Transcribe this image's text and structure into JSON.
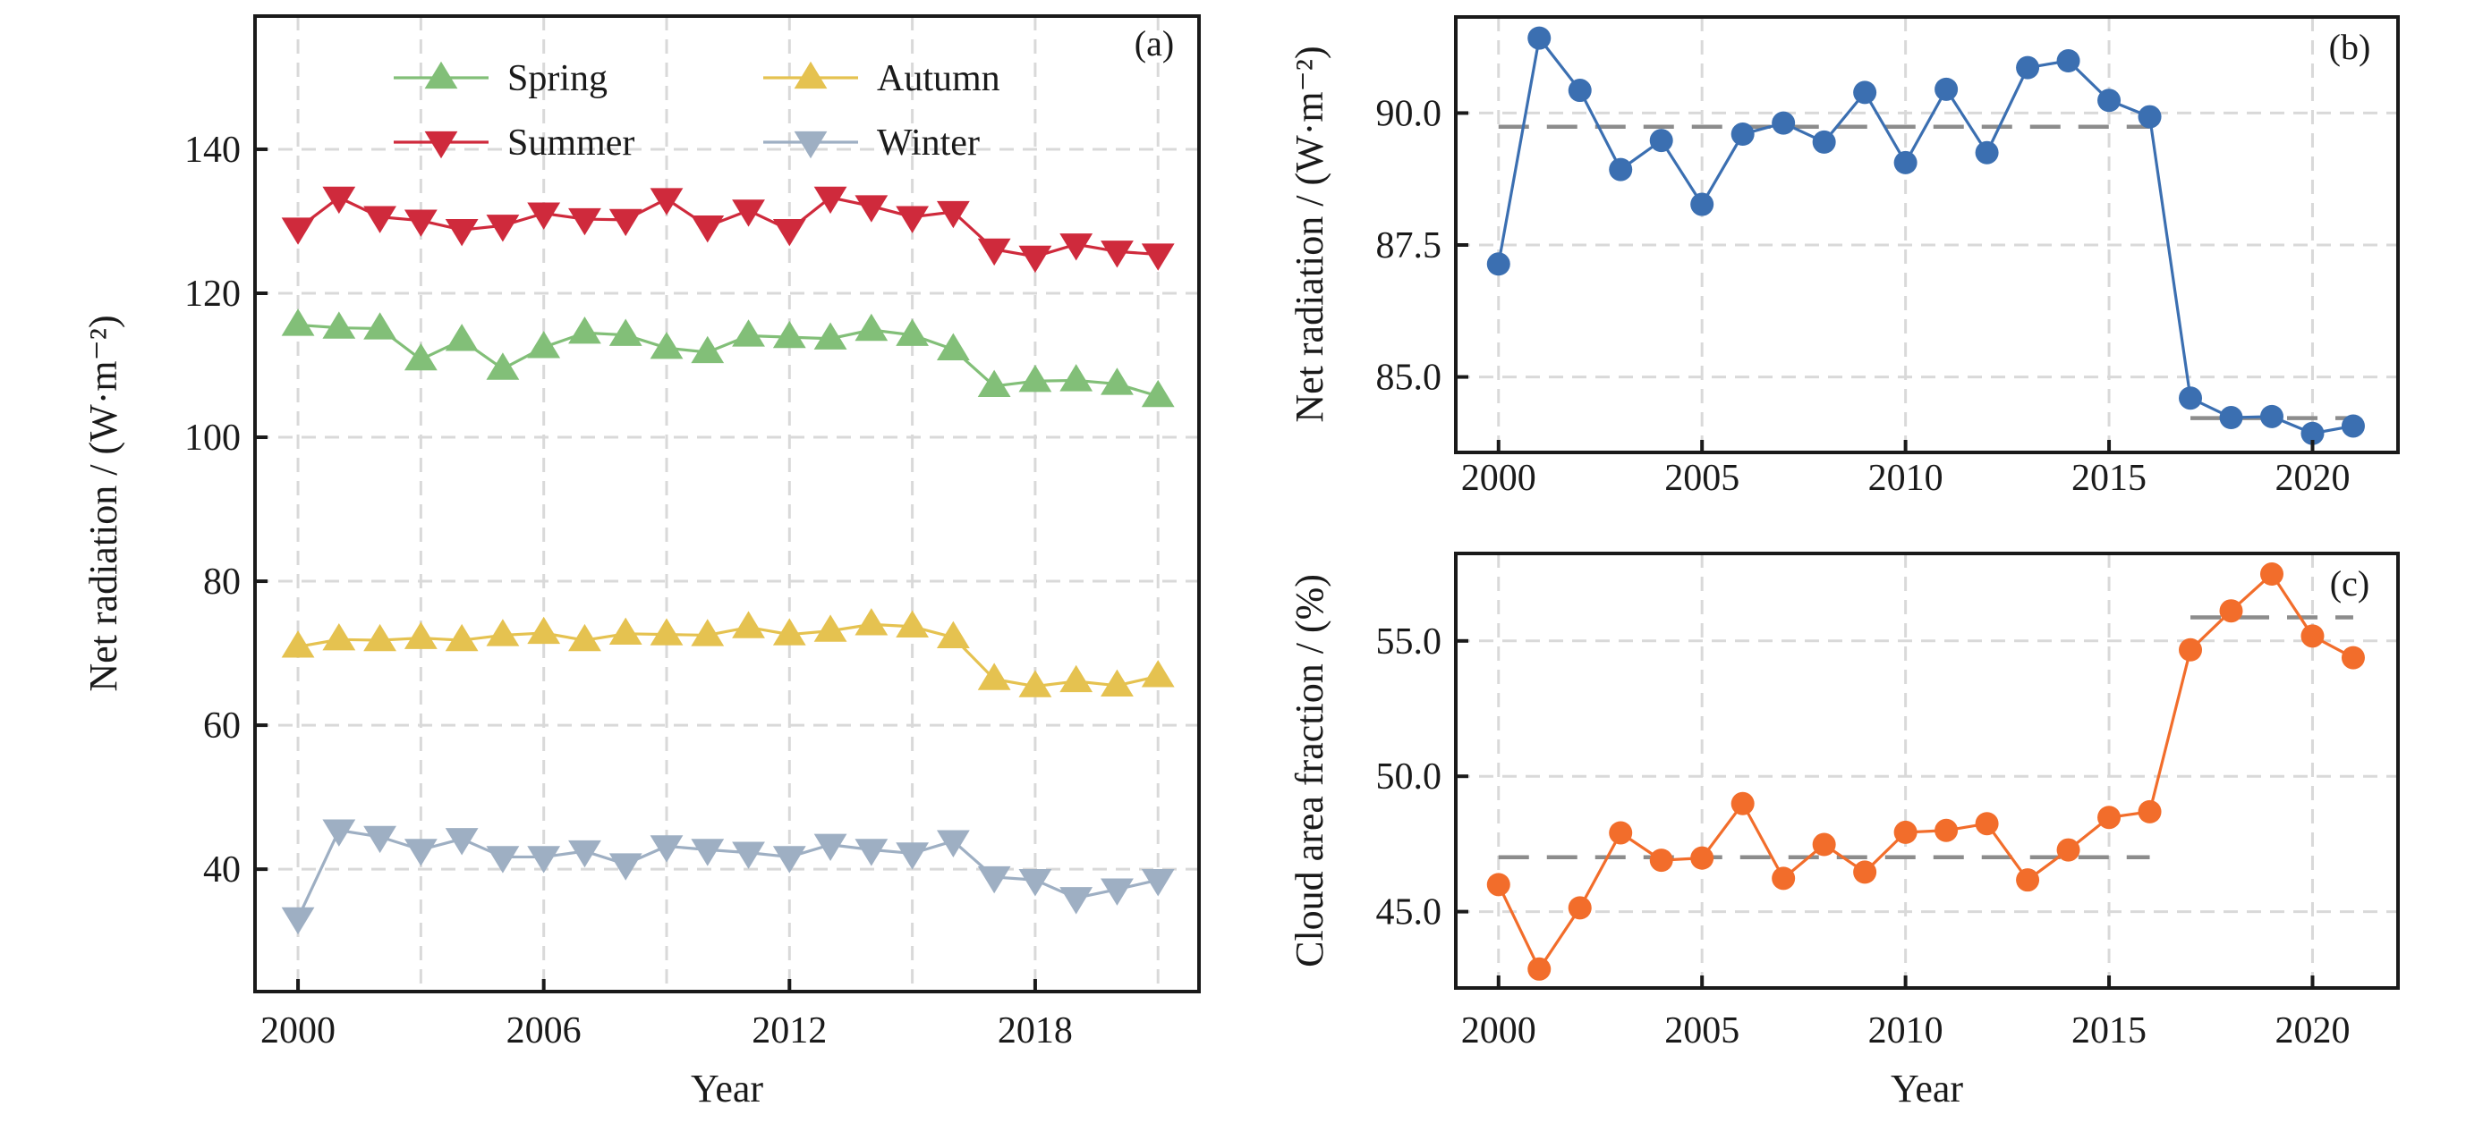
{
  "chart_data": [
    {
      "panel_label": "(a)",
      "type": "line",
      "xlabel": "Year",
      "ylabel": "Net radiation / (W·m⁻²)",
      "xlim": [
        1998.95,
        2022.0
      ],
      "ylim": [
        23,
        158.5
      ],
      "xticks": [
        2000,
        2006,
        2012,
        2018
      ],
      "xtick_labels": [
        "2000",
        "2006",
        "2012",
        "2018"
      ],
      "xgrid": [
        2000,
        2003,
        2006,
        2009,
        2012,
        2015,
        2018,
        2021
      ],
      "yticks": [
        40,
        60,
        80,
        100,
        120,
        140
      ],
      "ytick_labels": [
        "40",
        "60",
        "80",
        "100",
        "120",
        "140"
      ],
      "grid": true,
      "legend_position": "top",
      "x": [
        2000,
        2001,
        2002,
        2003,
        2004,
        2005,
        2006,
        2007,
        2008,
        2009,
        2010,
        2011,
        2012,
        2013,
        2014,
        2015,
        2016,
        2017,
        2018,
        2019,
        2020,
        2021
      ],
      "series": [
        {
          "name": "Spring",
          "color": "#82bf78",
          "marker": "triangle-up",
          "values": [
            115.6,
            115.2,
            115.1,
            110.8,
            113.5,
            109.5,
            112.5,
            114.5,
            114.2,
            112.4,
            111.8,
            114.1,
            113.9,
            113.7,
            114.9,
            114.2,
            112.2,
            107.1,
            107.8,
            107.9,
            107.4,
            105.7
          ]
        },
        {
          "name": "Summer",
          "color": "#cf2a3c",
          "marker": "triangle-down",
          "values": [
            129.0,
            133.3,
            130.6,
            130.1,
            128.8,
            129.4,
            131.1,
            130.3,
            130.2,
            133.1,
            129.3,
            131.5,
            128.8,
            133.3,
            132.1,
            130.6,
            131.3,
            126.1,
            125.1,
            126.8,
            125.8,
            125.4
          ]
        },
        {
          "name": "Autumn",
          "color": "#e5c250",
          "marker": "triangle-up",
          "values": [
            70.9,
            71.9,
            71.8,
            72.1,
            71.8,
            72.5,
            72.8,
            71.8,
            72.7,
            72.6,
            72.5,
            73.6,
            72.6,
            73.1,
            74.0,
            73.7,
            72.2,
            66.4,
            65.4,
            66.1,
            65.5,
            66.8
          ]
        },
        {
          "name": "Winter",
          "color": "#9eafc3",
          "marker": "triangle-down",
          "values": [
            33.2,
            45.4,
            44.5,
            42.7,
            44.2,
            41.7,
            41.7,
            42.5,
            40.7,
            43.2,
            42.7,
            42.3,
            41.7,
            43.4,
            42.7,
            42.2,
            43.9,
            38.9,
            38.5,
            36.0,
            37.2,
            38.5
          ]
        }
      ]
    },
    {
      "panel_label": "(b)",
      "type": "line",
      "xlabel": "",
      "ylabel": "Net radiation / (W·m⁻²)",
      "xlim": [
        1998.95,
        2022.1
      ],
      "ylim": [
        83.57,
        91.82
      ],
      "xticks": [
        2000,
        2005,
        2010,
        2015,
        2020
      ],
      "xtick_labels": [
        "2000",
        "2005",
        "2010",
        "2015",
        "2020"
      ],
      "yticks": [
        85.0,
        87.5,
        90.0
      ],
      "ytick_labels": [
        "85.0",
        "87.5",
        "90.0"
      ],
      "grid": true,
      "x": [
        2000,
        2001,
        2002,
        2003,
        2004,
        2005,
        2006,
        2007,
        2008,
        2009,
        2010,
        2011,
        2012,
        2013,
        2014,
        2015,
        2016,
        2017,
        2018,
        2019,
        2020,
        2021
      ],
      "series": [
        {
          "color": "#3b6fb1",
          "marker": "circle",
          "values": [
            87.14,
            91.42,
            90.43,
            88.93,
            89.48,
            88.27,
            89.6,
            89.81,
            89.45,
            90.39,
            89.06,
            90.45,
            89.25,
            90.86,
            90.99,
            90.24,
            89.93,
            84.6,
            84.23,
            84.25,
            83.93,
            84.07
          ]
        }
      ],
      "mean_lines": [
        {
          "x_range": [
            2000,
            2016
          ],
          "value": 89.74
        },
        {
          "x_range": [
            2017,
            2021
          ],
          "value": 84.22
        }
      ],
      "mean_line_color": "#8c8c8c"
    },
    {
      "panel_label": "(c)",
      "type": "line",
      "xlabel": "Year",
      "ylabel": "Cloud area fraction / (%)",
      "xlim": [
        1998.95,
        2022.1
      ],
      "ylim": [
        42.18,
        58.23
      ],
      "xticks": [
        2000,
        2005,
        2010,
        2015,
        2020
      ],
      "xtick_labels": [
        "2000",
        "2005",
        "2010",
        "2015",
        "2020"
      ],
      "yticks": [
        45.0,
        50.0,
        55.0
      ],
      "ytick_labels": [
        "45.0",
        "50.0",
        "55.0"
      ],
      "grid": true,
      "x": [
        2000,
        2001,
        2002,
        2003,
        2004,
        2005,
        2006,
        2007,
        2008,
        2009,
        2010,
        2011,
        2012,
        2013,
        2014,
        2015,
        2016,
        2017,
        2018,
        2019,
        2020,
        2021
      ],
      "series": [
        {
          "color": "#f26d2b",
          "marker": "circle",
          "values": [
            46.0,
            42.88,
            45.14,
            47.91,
            46.9,
            46.98,
            48.99,
            46.23,
            47.48,
            46.46,
            47.93,
            48.0,
            48.25,
            46.17,
            47.28,
            48.48,
            48.69,
            54.67,
            56.11,
            57.47,
            55.18,
            54.38
          ]
        }
      ],
      "mean_lines": [
        {
          "x_range": [
            2000,
            2016
          ],
          "value": 47.01
        },
        {
          "x_range": [
            2017,
            2021
          ],
          "value": 55.87
        }
      ],
      "mean_line_color": "#8c8c8c"
    }
  ]
}
